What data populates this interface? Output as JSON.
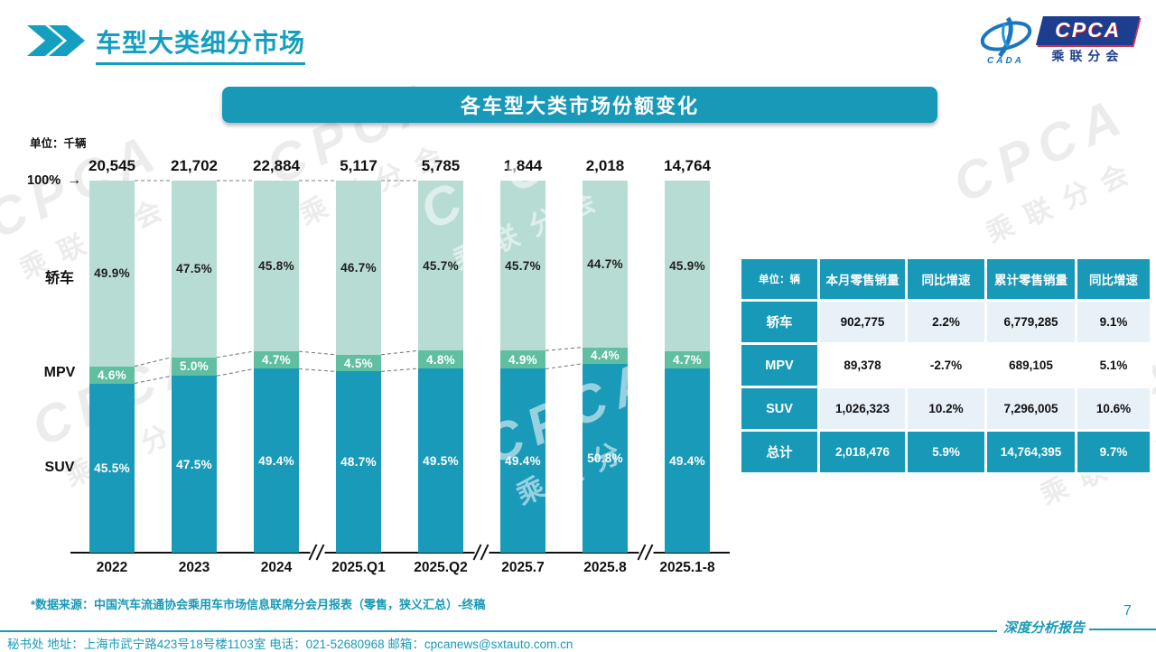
{
  "page": {
    "title": "车型大类细分市场",
    "page_number": "7",
    "report_label": "深度分析报告",
    "footnote": "*数据来源：中国汽车流通协会乘用车市场信息联席分会月报表（零售，狭义汇总）-终稿",
    "footer": "秘书处  地址：上海市武宁路423号18号楼1103室 电话：021-52680968  邮箱：cpcanews@sxtauto.com.cn"
  },
  "logo": {
    "cpca": "CPCA",
    "cada": "CADA",
    "subtitle": "乘联分会"
  },
  "banner": {
    "title": "各车型大类市场份额变化"
  },
  "watermark": {
    "text": "CPCA",
    "subtext": "乘联分会"
  },
  "chart_data": {
    "type": "bar",
    "stacked": true,
    "unit_label": "单位：千辆",
    "axis_marker": "100%",
    "categories": [
      "2022",
      "2023",
      "2024",
      "2025.Q1",
      "2025.Q2",
      "2025.7",
      "2025.8",
      "2025.1-8"
    ],
    "totals": [
      "20,545",
      "21,702",
      "22,884",
      "5,117",
      "5,785",
      "1,844",
      "2,018",
      "14,764"
    ],
    "series": [
      {
        "name": "SUV",
        "color": "#1a9ab9",
        "label_color": "#ffffff",
        "values": [
          45.5,
          47.5,
          49.4,
          48.7,
          49.5,
          49.4,
          50.8,
          49.4
        ]
      },
      {
        "name": "MPV",
        "color": "#5fbfa0",
        "label_color": "#ffffff",
        "values": [
          4.6,
          5.0,
          4.7,
          4.5,
          4.8,
          4.9,
          4.4,
          4.7
        ]
      },
      {
        "name": "轿车",
        "color": "#b7dcd3",
        "label_color": "#1d1d1d",
        "values": [
          49.9,
          47.5,
          45.8,
          46.7,
          45.7,
          45.7,
          44.7,
          45.9
        ]
      }
    ],
    "ylim": [
      0,
      100
    ],
    "grid": false,
    "axis_breaks_after": [
      2,
      4,
      6
    ],
    "connector_pairs": [
      [
        0,
        1
      ],
      [
        1,
        2
      ],
      [
        2,
        3
      ],
      [
        3,
        4
      ],
      [
        5,
        6
      ]
    ],
    "top_dash_pairs": [
      [
        0,
        1
      ],
      [
        1,
        2
      ],
      [
        2,
        3
      ],
      [
        3,
        4
      ]
    ]
  },
  "table": {
    "unit_label": "单位：辆",
    "headers": [
      "本月零售销量",
      "同比增速",
      "累计零售销量",
      "同比增速"
    ],
    "rows": [
      {
        "label": "轿车",
        "cells": [
          "902,775",
          "2.2%",
          "6,779,285",
          "9.1%"
        ]
      },
      {
        "label": "MPV",
        "cells": [
          "89,378",
          "-2.7%",
          "689,105",
          "5.1%"
        ]
      },
      {
        "label": "SUV",
        "cells": [
          "1,026,323",
          "10.2%",
          "7,296,005",
          "10.6%"
        ]
      },
      {
        "label": "总计",
        "cells": [
          "2,018,476",
          "5.9%",
          "14,764,395",
          "9.7%"
        ]
      }
    ]
  }
}
